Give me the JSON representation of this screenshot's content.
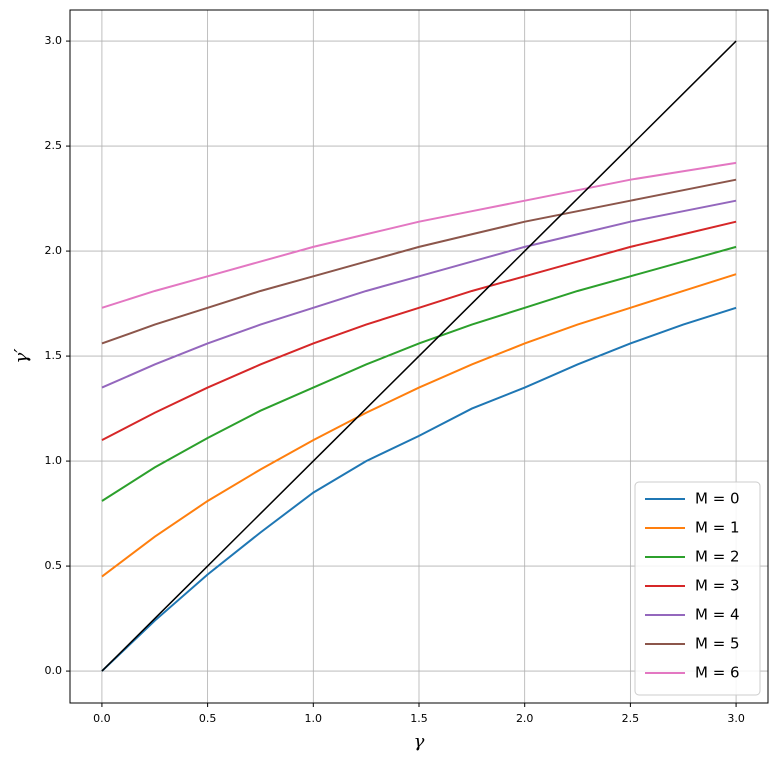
{
  "chart_data": {
    "type": "line",
    "x": [
      0,
      0.25,
      0.5,
      0.75,
      1.0,
      1.25,
      1.5,
      1.75,
      2.0,
      2.25,
      2.5,
      2.75,
      3.0
    ],
    "xlabel": "γ",
    "ylabel": "γ′",
    "xlim": [
      -0.151,
      3.151
    ],
    "ylim": [
      -0.152,
      3.148
    ],
    "xticks": [
      {
        "value": 0,
        "label": "0.0"
      },
      0.5,
      {
        "value": 1,
        "label": "1.0"
      },
      1.5,
      {
        "value": 2,
        "label": "2.0"
      },
      2.5,
      {
        "value": 3,
        "label": "3.0"
      }
    ],
    "yticks": [
      {
        "value": 0,
        "label": "0.0"
      },
      0.5,
      {
        "value": 1,
        "label": "1.0"
      },
      1.5,
      {
        "value": 2,
        "label": "2.0"
      },
      2.5,
      {
        "value": 3,
        "label": "3.0"
      }
    ],
    "grid": true,
    "legend": "lower right",
    "series": [
      {
        "name": "M = 0",
        "color": "#1f77b4",
        "values": [
          0,
          0.24,
          0.46,
          0.66,
          0.85,
          1.0,
          1.12,
          1.25,
          1.35,
          1.46,
          1.56,
          1.65,
          1.73
        ]
      },
      {
        "name": "M = 1",
        "color": "#ff7f0e",
        "values": [
          0.45,
          0.64,
          0.81,
          0.96,
          1.1,
          1.23,
          1.35,
          1.46,
          1.56,
          1.65,
          1.73,
          1.81,
          1.89
        ]
      },
      {
        "name": "M = 2",
        "color": "#2ca02c",
        "values": [
          0.81,
          0.97,
          1.11,
          1.24,
          1.35,
          1.46,
          1.56,
          1.65,
          1.73,
          1.81,
          1.88,
          1.95,
          2.02
        ]
      },
      {
        "name": "M = 3",
        "color": "#d62728",
        "values": [
          1.1,
          1.23,
          1.35,
          1.46,
          1.56,
          1.65,
          1.73,
          1.81,
          1.88,
          1.95,
          2.02,
          2.08,
          2.14
        ]
      },
      {
        "name": "M = 4",
        "color": "#9467bd",
        "values": [
          1.35,
          1.46,
          1.56,
          1.65,
          1.73,
          1.81,
          1.88,
          1.95,
          2.02,
          2.08,
          2.14,
          2.19,
          2.24
        ]
      },
      {
        "name": "M = 5",
        "color": "#8c564b",
        "values": [
          1.56,
          1.65,
          1.73,
          1.81,
          1.88,
          1.95,
          2.02,
          2.08,
          2.14,
          2.19,
          2.24,
          2.29,
          2.34
        ]
      },
      {
        "name": "M = 6",
        "color": "#e377c2",
        "values": [
          1.73,
          1.81,
          1.88,
          1.95,
          2.02,
          2.08,
          2.14,
          2.19,
          2.24,
          2.29,
          2.34,
          2.38,
          2.42
        ]
      },
      {
        "color": "#000000",
        "values": [
          0,
          0.25,
          0.5,
          0.75,
          1.0,
          1.25,
          1.5,
          1.75,
          2.0,
          2.25,
          2.5,
          2.75,
          3.0
        ]
      }
    ]
  }
}
